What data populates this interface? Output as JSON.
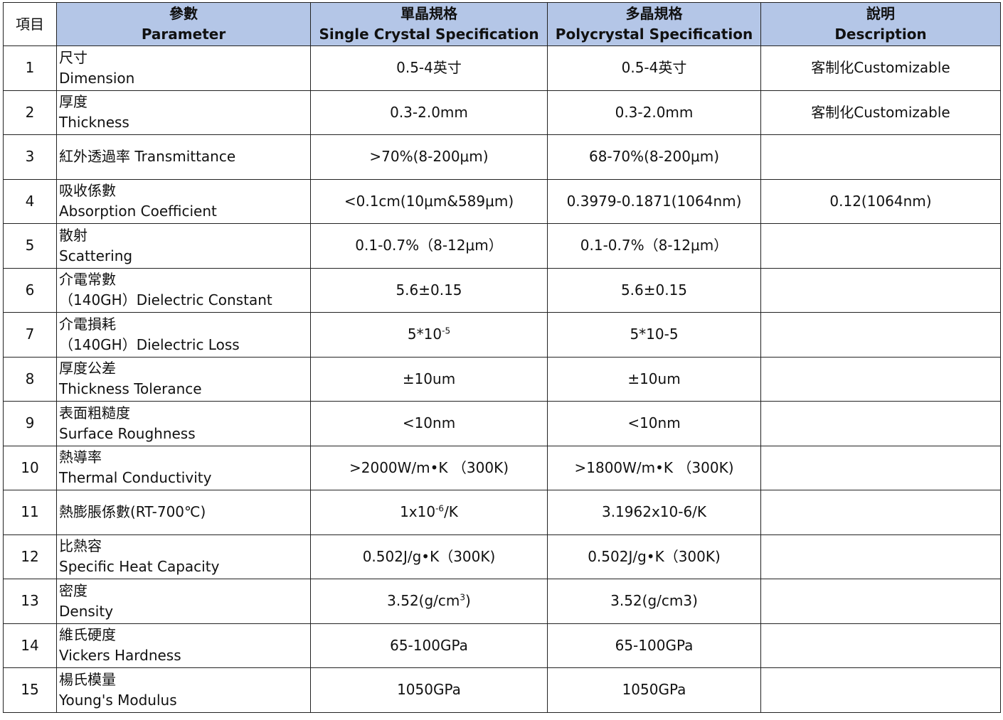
{
  "headers": {
    "item": "項目",
    "parameter": {
      "zh": "參數",
      "en": "Parameter"
    },
    "single": {
      "zh": "單晶規格",
      "en": "Single Crystal Specification"
    },
    "poly": {
      "zh": "多晶規格",
      "en": "Polycrystal Specification"
    },
    "description": {
      "zh": "說明",
      "en": "Description"
    }
  },
  "rows": [
    {
      "no": "1",
      "zh": "尺寸",
      "en": "Dimension",
      "single": "0.5-4英寸",
      "poly": "0.5-4英寸",
      "desc": "客制化Customizable"
    },
    {
      "no": "2",
      "zh": "厚度",
      "en": "Thickness",
      "single": "0.3-2.0mm",
      "poly": "0.3-2.0mm",
      "desc": "客制化Customizable"
    },
    {
      "no": "3",
      "zh": "紅外透過率 Transmittance",
      "en": "",
      "single": ">70%(8-200μm)",
      "poly": "68-70%(8-200μm)",
      "desc": ""
    },
    {
      "no": "4",
      "zh": "吸收係數",
      "en": "Absorption Coefficient",
      "single": "<0.1cm(10μm&589μm)",
      "poly": "0.3979-0.1871(1064nm)",
      "desc": "0.12(1064nm)"
    },
    {
      "no": "5",
      "zh": "散射",
      "en": "Scattering",
      "single": "0.1-0.7%（8-12μm）",
      "poly": "0.1-0.7%（8-12μm）",
      "desc": ""
    },
    {
      "no": "6",
      "zh": "介電常數",
      "en": "（140GH）Dielectric Constant",
      "single": "5.6±0.15",
      "poly": "5.6±0.15",
      "desc": ""
    },
    {
      "no": "7",
      "zh": "介電損耗",
      "en": "（140GH）Dielectric Loss",
      "single": "5*10",
      "single_sup": "-5",
      "poly": "5*10-5",
      "desc": ""
    },
    {
      "no": "8",
      "zh": "厚度公差",
      "en": "Thickness Tolerance",
      "single": "±10um",
      "poly": "±10um",
      "desc": ""
    },
    {
      "no": "9",
      "zh": "表面粗糙度",
      "en": "Surface Roughness",
      "single": "<10nm",
      "poly": "<10nm",
      "desc": ""
    },
    {
      "no": "10",
      "zh": "熱導率",
      "en": "Thermal Conductivity",
      "single": ">2000W/m•K （300K)",
      "poly": ">1800W/m•K （300K)",
      "desc": ""
    },
    {
      "no": "11",
      "zh": "熱膨脹係數(RT-700℃)",
      "en": "",
      "single": "1x10",
      "single_sup": "-6",
      "single_tail": "/K",
      "poly": "3.1962x10-6/K",
      "desc": ""
    },
    {
      "no": "12",
      "zh": "比熱容",
      "en": "Specific Heat Capacity",
      "single": "0.502J/g•K（300K)",
      "poly": "0.502J/g•K（300K)",
      "desc": ""
    },
    {
      "no": "13",
      "zh": "密度",
      "en": "Density",
      "single": "3.52(g/cm",
      "single_sup": "3",
      "single_tail": ")",
      "poly": "3.52(g/cm3)",
      "desc": ""
    },
    {
      "no": "14",
      "zh": "維氏硬度",
      "en": "Vickers Hardness",
      "single": "65-100GPa",
      "poly": "65-100GPa",
      "desc": ""
    },
    {
      "no": "15",
      "zh": "楊氏模量",
      "en": "Young's Modulus",
      "single": "1050GPa",
      "poly": "1050GPa",
      "desc": ""
    }
  ]
}
